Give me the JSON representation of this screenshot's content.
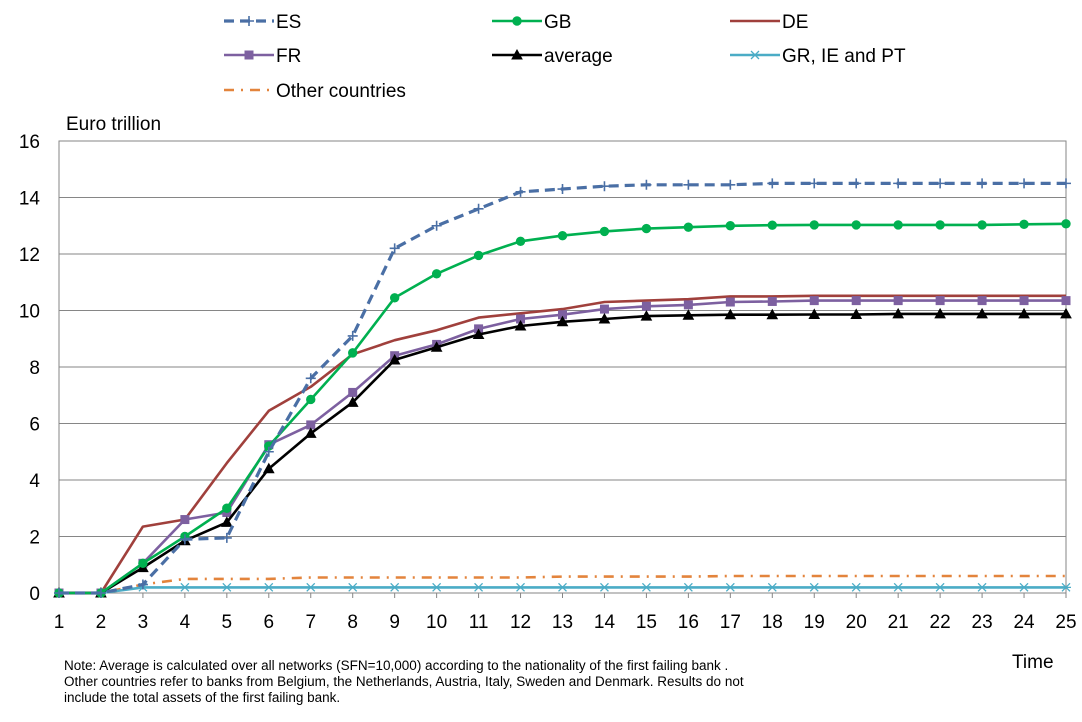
{
  "chart_data": {
    "type": "line",
    "ylabel": "Euro trillion",
    "xlabel": "Time",
    "ylim": [
      0,
      16
    ],
    "yticks": [
      0,
      2,
      4,
      6,
      8,
      10,
      12,
      14,
      16
    ],
    "x": [
      1,
      2,
      3,
      4,
      5,
      6,
      7,
      8,
      9,
      10,
      11,
      12,
      13,
      14,
      15,
      16,
      17,
      18,
      19,
      20,
      21,
      22,
      23,
      24,
      25
    ],
    "grid": "horizontal",
    "legend_position": "top",
    "series": [
      {
        "name": "ES",
        "color": "#4a6fa5",
        "dash": "dashed",
        "marker": "plus",
        "values": [
          0,
          0,
          0.3,
          1.9,
          1.95,
          5.0,
          7.6,
          9.1,
          12.2,
          13.0,
          13.6,
          14.2,
          14.3,
          14.4,
          14.45,
          14.45,
          14.45,
          14.5,
          14.5,
          14.5,
          14.5,
          14.5,
          14.5,
          14.5,
          14.5
        ]
      },
      {
        "name": "GB",
        "color": "#00b050",
        "dash": "solid",
        "marker": "circle",
        "values": [
          0,
          0,
          1.05,
          2.0,
          3.0,
          5.2,
          6.85,
          8.5,
          10.45,
          11.3,
          11.95,
          12.45,
          12.65,
          12.8,
          12.9,
          12.95,
          13.0,
          13.02,
          13.03,
          13.03,
          13.03,
          13.03,
          13.03,
          13.05,
          13.07
        ]
      },
      {
        "name": "DE",
        "color": "#a0403c",
        "dash": "solid",
        "marker": "none",
        "values": [
          0,
          0,
          2.35,
          2.6,
          4.6,
          6.45,
          7.3,
          8.45,
          8.95,
          9.3,
          9.75,
          9.9,
          10.05,
          10.3,
          10.35,
          10.4,
          10.5,
          10.5,
          10.52,
          10.52,
          10.52,
          10.52,
          10.52,
          10.52,
          10.52
        ]
      },
      {
        "name": "FR",
        "color": "#7d60a0",
        "dash": "solid",
        "marker": "square",
        "values": [
          0,
          0,
          1.05,
          2.6,
          2.85,
          5.25,
          5.95,
          7.1,
          8.4,
          8.8,
          9.35,
          9.7,
          9.85,
          10.05,
          10.15,
          10.2,
          10.3,
          10.32,
          10.35,
          10.35,
          10.35,
          10.35,
          10.35,
          10.35,
          10.35
        ]
      },
      {
        "name": "average",
        "color": "#000000",
        "dash": "solid",
        "marker": "triangle",
        "values": [
          0,
          0,
          0.9,
          1.85,
          2.5,
          4.4,
          5.65,
          6.75,
          8.25,
          8.7,
          9.15,
          9.45,
          9.6,
          9.7,
          9.8,
          9.83,
          9.85,
          9.85,
          9.86,
          9.86,
          9.88,
          9.88,
          9.88,
          9.88,
          9.88
        ]
      },
      {
        "name": "GR, IE and PT",
        "color": "#4bacc6",
        "dash": "solid",
        "marker": "star",
        "values": [
          0,
          0,
          0.2,
          0.2,
          0.2,
          0.2,
          0.2,
          0.2,
          0.2,
          0.2,
          0.2,
          0.2,
          0.2,
          0.2,
          0.2,
          0.2,
          0.2,
          0.2,
          0.2,
          0.2,
          0.2,
          0.2,
          0.2,
          0.2,
          0.2
        ]
      },
      {
        "name": "Other countries",
        "color": "#e3843c",
        "dash": "dashdot",
        "marker": "none",
        "values": [
          0,
          0,
          0.3,
          0.5,
          0.5,
          0.5,
          0.55,
          0.55,
          0.55,
          0.55,
          0.55,
          0.55,
          0.58,
          0.58,
          0.58,
          0.58,
          0.6,
          0.6,
          0.6,
          0.6,
          0.6,
          0.6,
          0.6,
          0.6,
          0.6
        ]
      }
    ]
  },
  "note": {
    "line1": "Note: Average is calculated over all networks (SFN=10,000)  according to the nationality of the first failing bank .",
    "line2": "Other countries refer to banks from Belgium, the Netherlands, Austria, Italy, Sweden and Denmark. Results do not",
    "line3": "include the total assets of the first failing bank."
  }
}
